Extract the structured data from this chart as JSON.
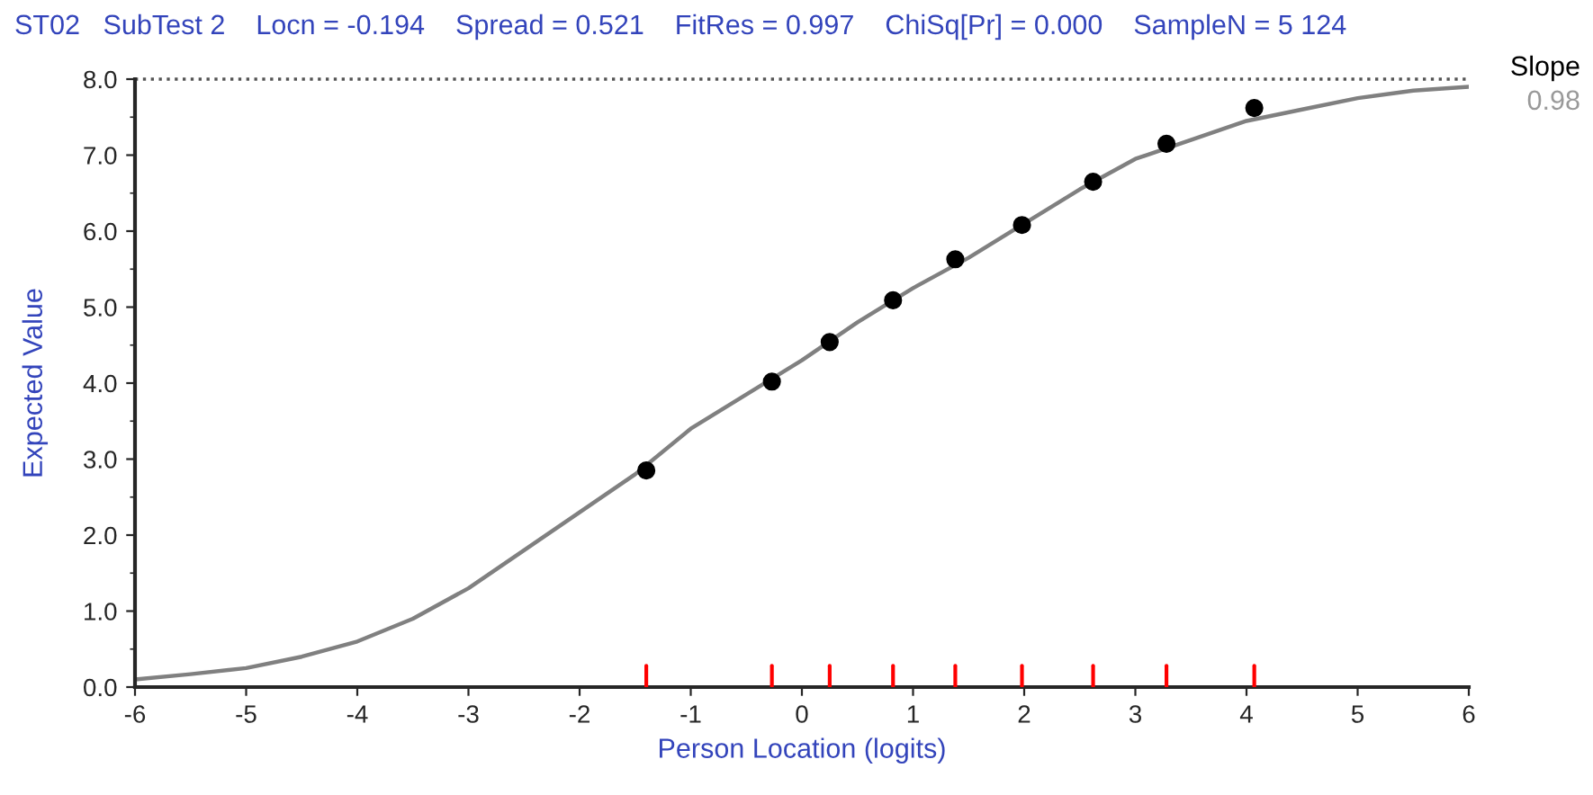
{
  "chart_data": {
    "type": "line",
    "title": "ST02   SubTest 2    Locn = -0.194    Spread = 0.521    FitRes = 0.997    ChiSq[Pr] = 0.000    SampleN = 5 124",
    "xlabel": "Person Location (logits)",
    "ylabel": "Expected Value",
    "annotations": [
      "Slope",
      "0.98"
    ],
    "series": [
      {
        "color": "#808080",
        "marker": "none",
        "line_style": "solid",
        "x": [
          -6,
          -5.5,
          -5,
          -4.5,
          -4,
          -3.5,
          -3,
          -2.5,
          -2,
          -1.5,
          -1,
          -0.5,
          0,
          0.5,
          1,
          1.5,
          2,
          2.5,
          3,
          3.5,
          4,
          4.5,
          5,
          5.5,
          6
        ],
        "values": [
          0.1,
          0.17,
          0.25,
          0.4,
          0.6,
          0.9,
          1.3,
          1.8,
          2.3,
          2.8,
          3.4,
          3.85,
          4.3,
          4.8,
          5.25,
          5.65,
          6.1,
          6.55,
          6.95,
          7.2,
          7.45,
          7.6,
          7.75,
          7.85,
          7.9
        ]
      },
      {
        "type": "scatter",
        "color": "#000000",
        "marker": "circle",
        "x": [
          -1.4,
          -0.27,
          0.25,
          0.82,
          1.38,
          1.98,
          2.62,
          3.28,
          4.07
        ],
        "values": [
          2.85,
          4.02,
          4.54,
          5.09,
          5.63,
          6.08,
          6.65,
          7.15,
          7.62
        ]
      }
    ],
    "ref_lines": [
      {
        "axis": "y",
        "value": 8,
        "color": "#555555",
        "line_style": "dotted"
      }
    ],
    "xlim": [
      -6,
      6
    ],
    "xticks": [
      -6,
      -5,
      -4,
      -3,
      -2,
      -1,
      0,
      1,
      2,
      3,
      4,
      5,
      6
    ],
    "ylim": [
      0,
      8
    ],
    "yticks": [
      {
        "value": 0,
        "label": "0.0"
      },
      {
        "value": 1,
        "label": "1.0"
      },
      {
        "value": 2,
        "label": "2.0"
      },
      {
        "value": 3,
        "label": "3.0"
      },
      {
        "value": 4,
        "label": "4.0"
      },
      {
        "value": 5,
        "label": "5.0"
      },
      {
        "value": 6,
        "label": "6.0"
      },
      {
        "value": 7,
        "label": "7.0"
      },
      {
        "value": 8,
        "label": "8.0"
      }
    ],
    "grid": false,
    "legend": false
  }
}
